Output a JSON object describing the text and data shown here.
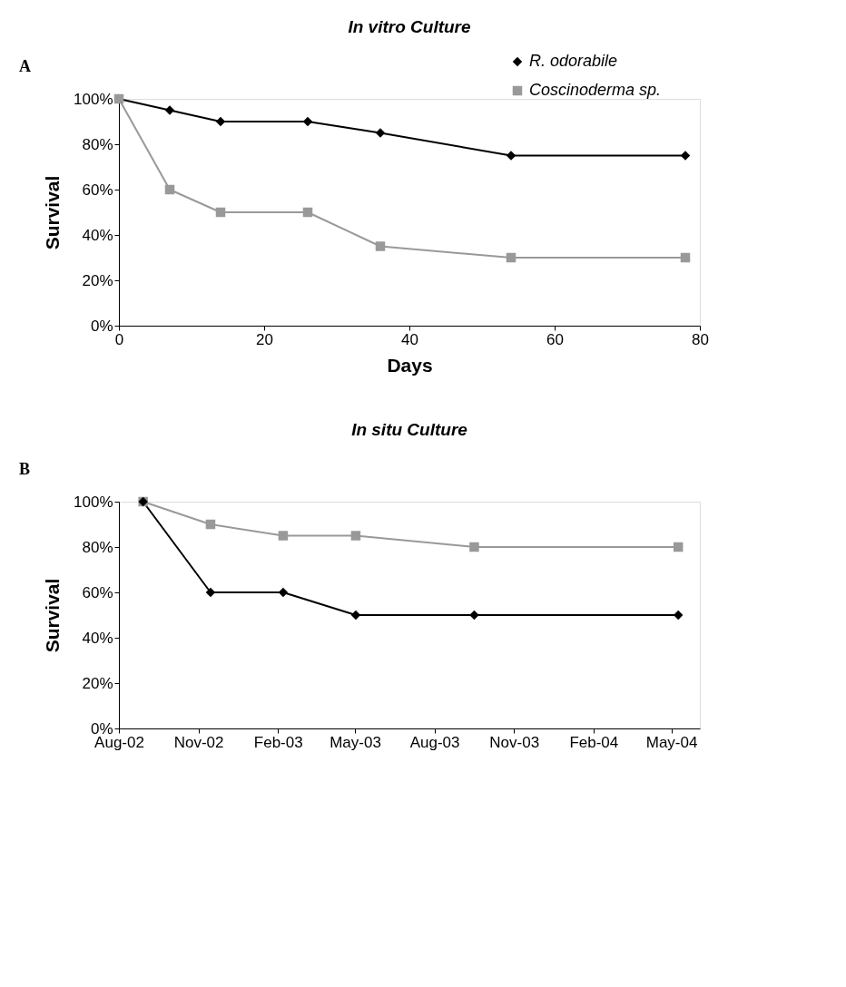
{
  "chart_data": [
    {
      "type": "line",
      "title": "In vitro Culture",
      "xlabel": "Days",
      "ylabel": "Survival",
      "annotations": [
        "A"
      ],
      "legend": "top right",
      "grid": false,
      "x": [
        0,
        7,
        14,
        26,
        36,
        54,
        78
      ],
      "xlim": [
        0,
        80
      ],
      "xticks": [
        0,
        20,
        40,
        60,
        80
      ],
      "ylim": [
        0,
        100
      ],
      "yticks": [
        {
          "value": 0,
          "label": "0%"
        },
        {
          "value": 20,
          "label": "20%"
        },
        {
          "value": 40,
          "label": "40%"
        },
        {
          "value": 60,
          "label": "60%"
        },
        {
          "value": 80,
          "label": "80%"
        },
        {
          "value": 100,
          "label": "100%"
        }
      ],
      "series": [
        {
          "name": "R. odorabile",
          "color": "#000000",
          "marker": "diamond",
          "values": [
            100,
            95,
            90,
            90,
            85,
            75,
            75
          ]
        },
        {
          "name": "Coscinoderma sp.",
          "color": "#999999",
          "marker": "square",
          "values": [
            100,
            60,
            50,
            50,
            35,
            30,
            30
          ]
        }
      ]
    },
    {
      "type": "line",
      "title": "In situ Culture",
      "ylabel": "Survival",
      "annotations": [
        "B"
      ],
      "legend": "top right",
      "grid": false,
      "x": [
        "2002-08-29",
        "2002-11-15",
        "2003-02-07",
        "2003-05-02",
        "2003-09-16",
        "2004-05-09"
      ],
      "xlim": [
        "2002-08-01",
        "2004-06-03"
      ],
      "xticks": [
        {
          "value": "2002-08-01",
          "label": "Aug-02"
        },
        {
          "value": "2002-11-01",
          "label": "Nov-02"
        },
        {
          "value": "2003-02-01",
          "label": "Feb-03"
        },
        {
          "value": "2003-05-01",
          "label": "May-03"
        },
        {
          "value": "2003-08-01",
          "label": "Aug-03"
        },
        {
          "value": "2003-11-01",
          "label": "Nov-03"
        },
        {
          "value": "2004-02-01",
          "label": "Feb-04"
        },
        {
          "value": "2004-05-01",
          "label": "May-04"
        }
      ],
      "ylim": [
        0,
        100
      ],
      "yticks": [
        {
          "value": 0,
          "label": "0%"
        },
        {
          "value": 20,
          "label": "20%"
        },
        {
          "value": 40,
          "label": "40%"
        },
        {
          "value": 60,
          "label": "60%"
        },
        {
          "value": 80,
          "label": "80%"
        },
        {
          "value": 100,
          "label": "100%"
        }
      ],
      "series": [
        {
          "name": "Coscinoderma sp.",
          "color": "#999999",
          "marker": "square",
          "values": [
            100,
            90,
            85,
            85,
            80,
            80
          ]
        },
        {
          "name": "R. odorabile",
          "color": "#000000",
          "marker": "diamond",
          "values": [
            100,
            60,
            60,
            50,
            50,
            50
          ]
        }
      ]
    }
  ]
}
